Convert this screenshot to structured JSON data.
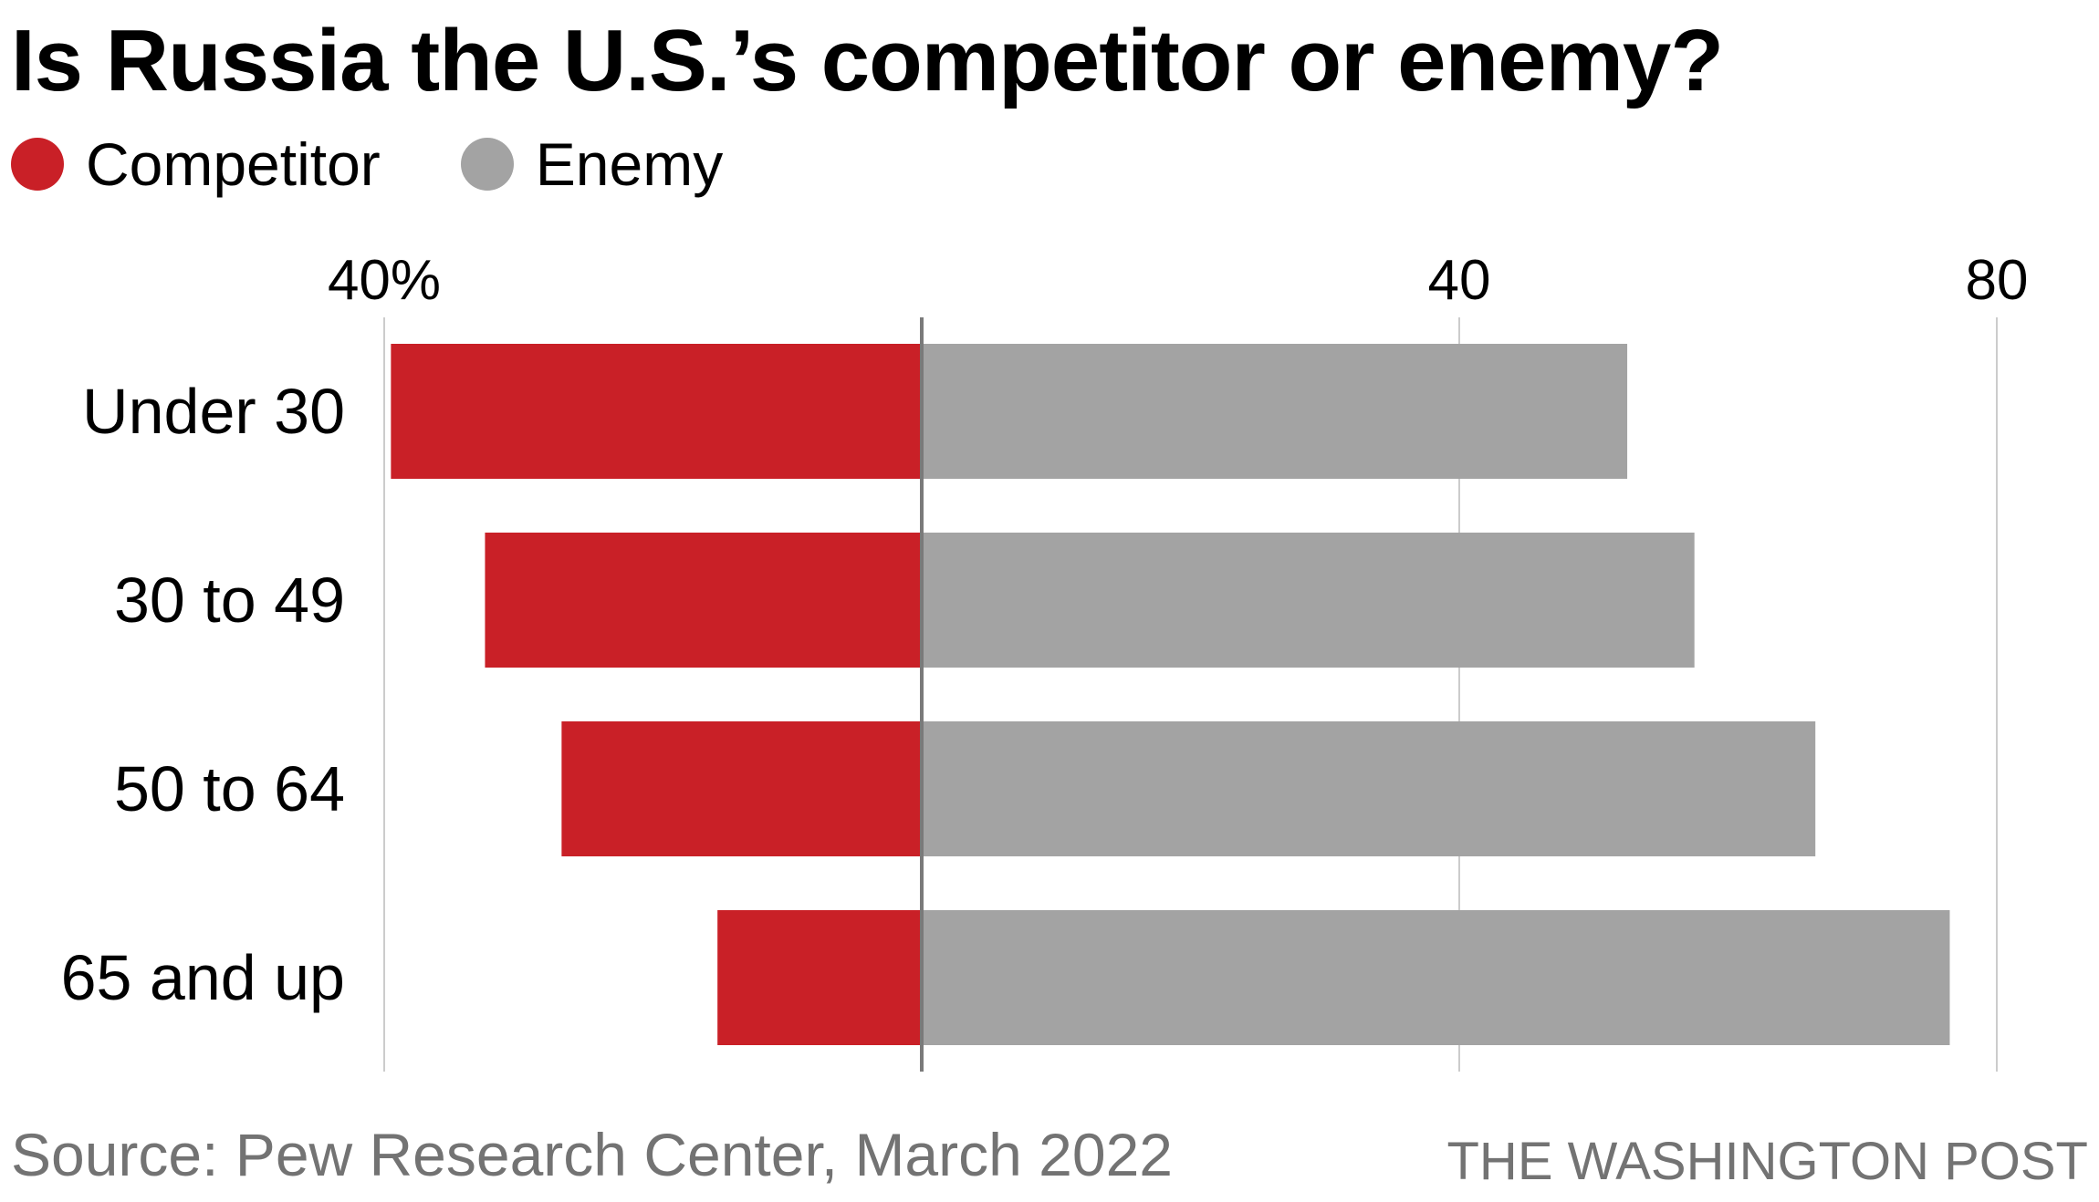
{
  "title": "Is Russia the U.S.’s competitor or enemy?",
  "legend": [
    {
      "label": "Competitor",
      "color": "#c92027"
    },
    {
      "label": "Enemy",
      "color": "#a3a3a3"
    }
  ],
  "chart_data": {
    "type": "bar",
    "orientation": "horizontal-diverging",
    "title": "Is Russia the U.S.’s competitor or enemy?",
    "categories": [
      "Under 30",
      "30 to 49",
      "50 to 64",
      "65 and up"
    ],
    "series": [
      {
        "name": "Competitor",
        "direction": "left",
        "color": "#c92027",
        "values": [
          39.5,
          32.5,
          26.8,
          15.2
        ]
      },
      {
        "name": "Enemy",
        "direction": "right",
        "color": "#a3a3a3",
        "values": [
          52.5,
          57.5,
          66.5,
          76.5
        ]
      }
    ],
    "xlim": [
      -40,
      80
    ],
    "ticks": [
      {
        "value": -40,
        "label": "40%"
      },
      {
        "value": 40,
        "label": "40"
      },
      {
        "value": 80,
        "label": "80"
      }
    ],
    "xlabel": "",
    "ylabel": "",
    "grid": true
  },
  "source": "Source: Pew Research Center, March 2022",
  "credit": "THE WASHINGTON POST"
}
